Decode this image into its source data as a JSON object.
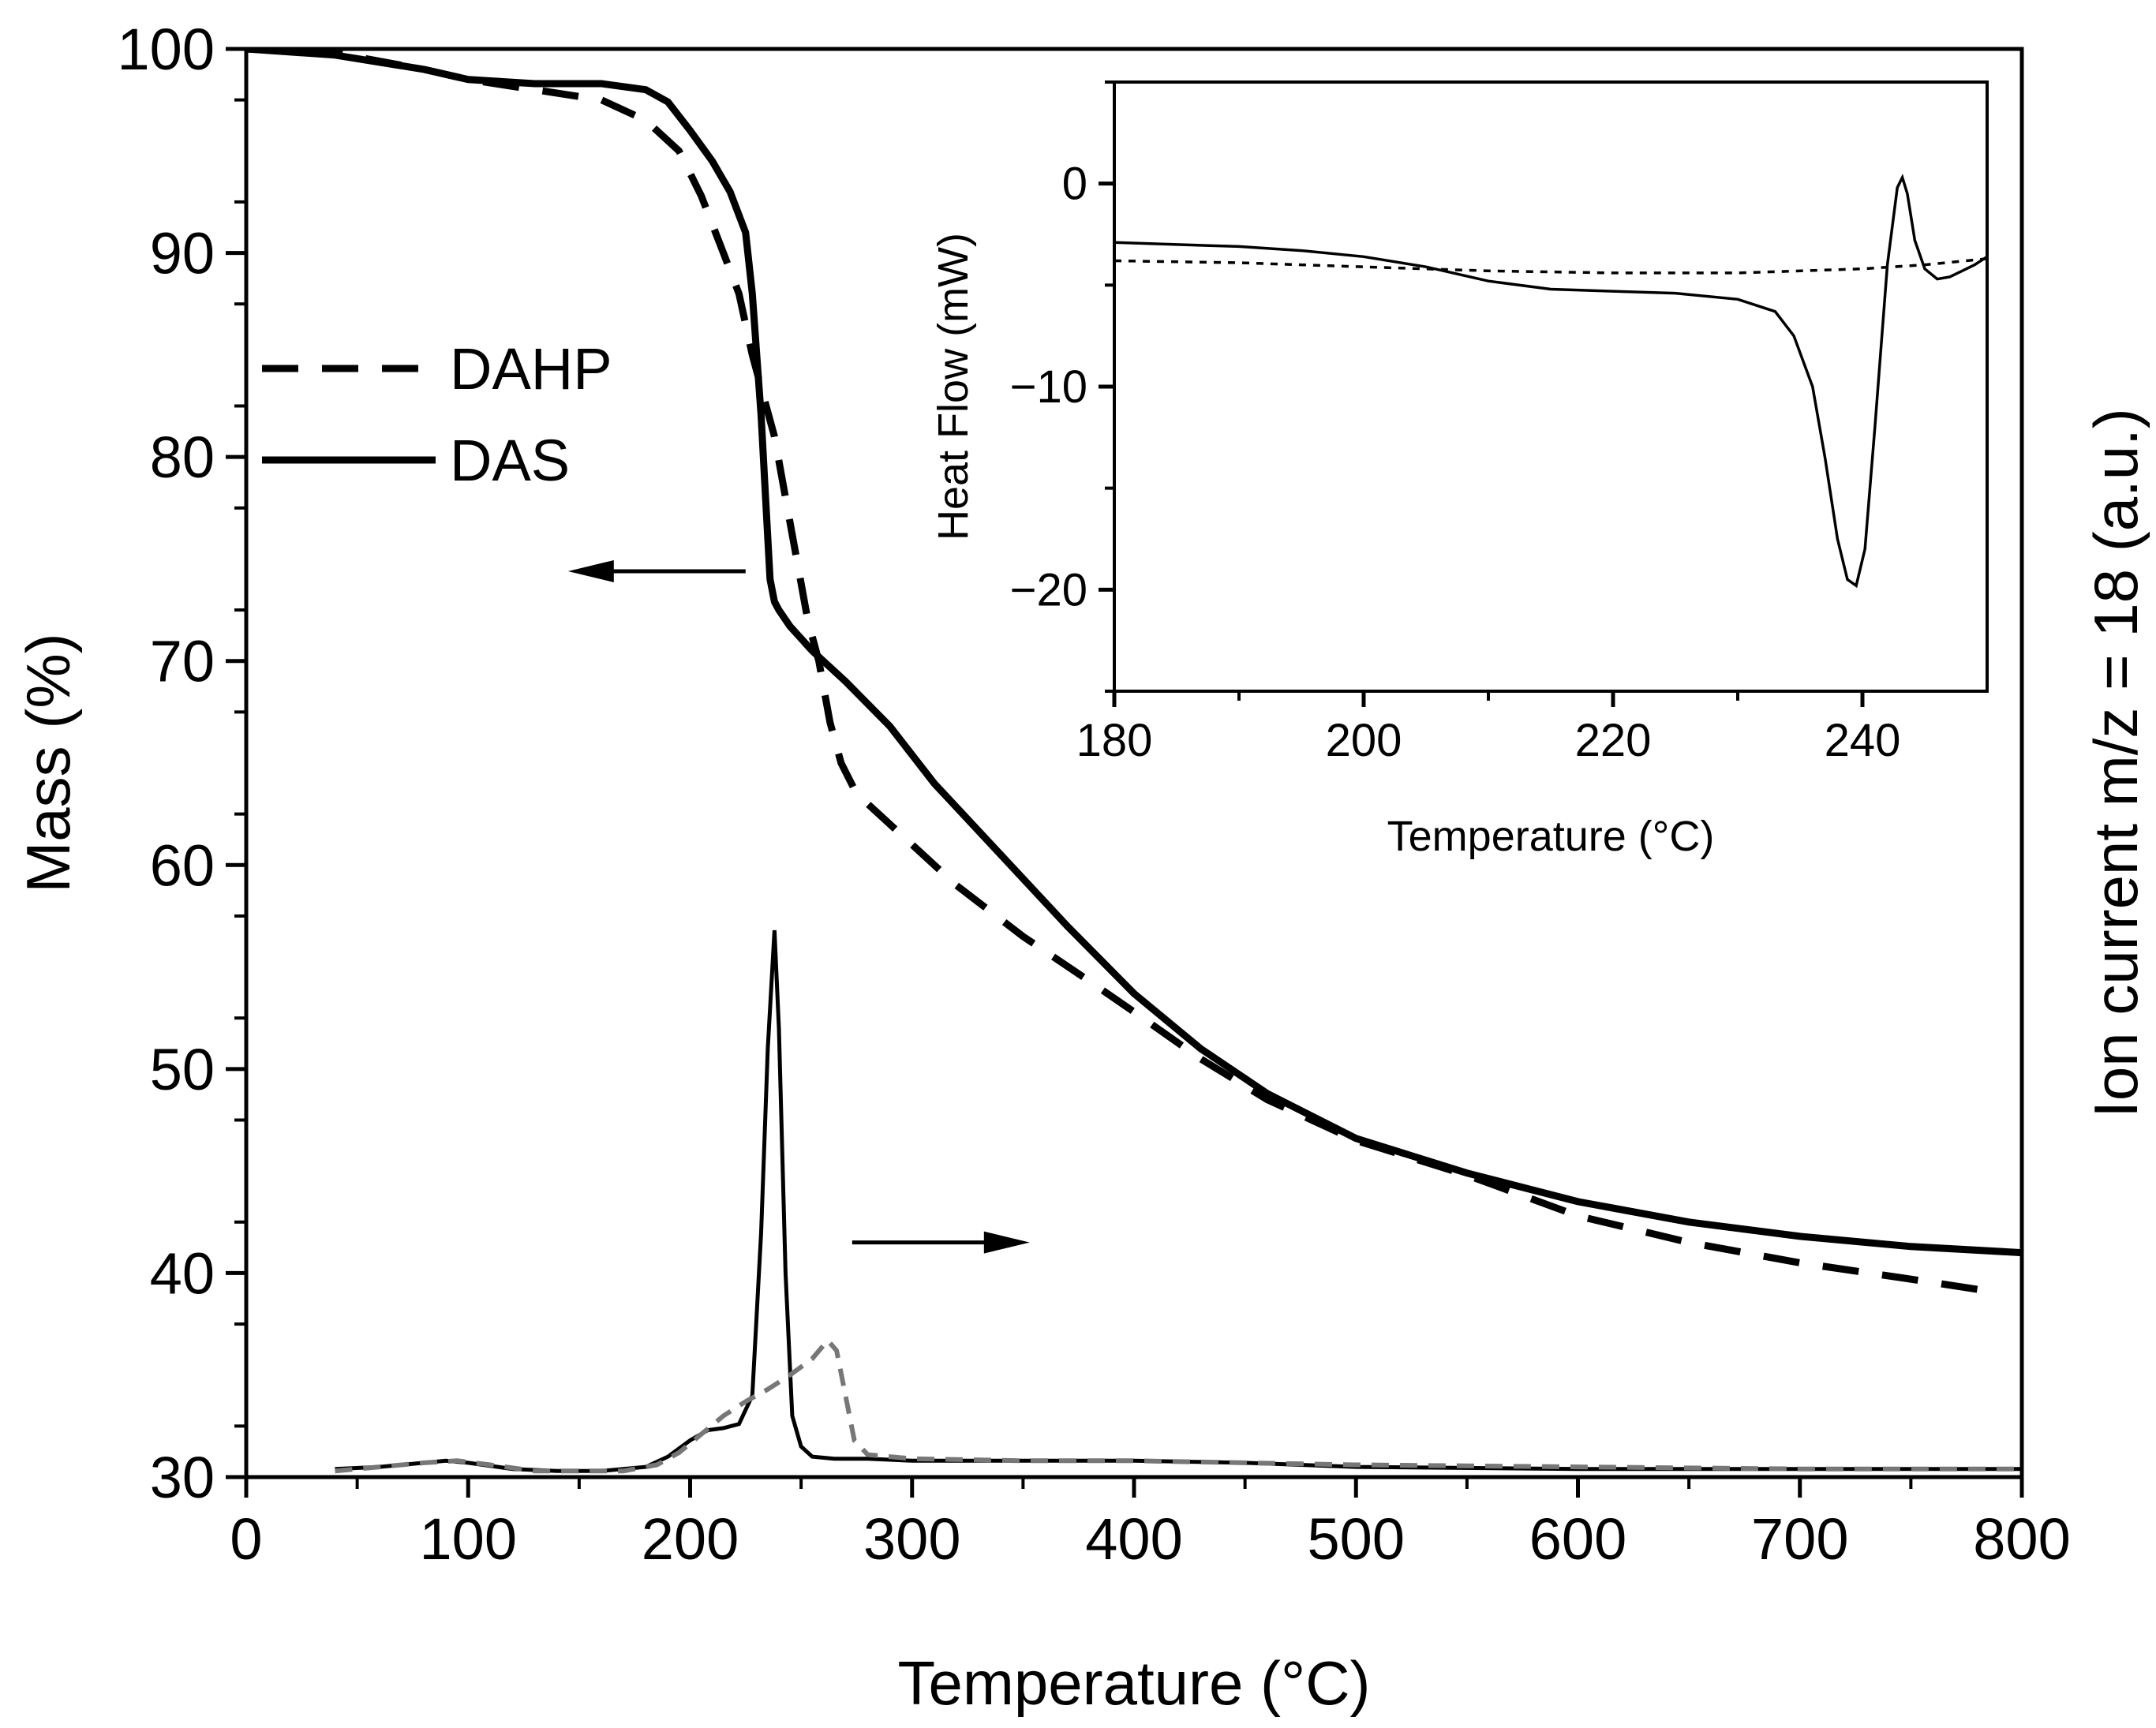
{
  "chart_data": [
    {
      "type": "line",
      "title": "",
      "xlabel": "Temperature (°C)",
      "ylabel": "Mass (%)",
      "y2label": "Ion current m/z = 18 (a.u.)",
      "xlim": [
        0,
        800
      ],
      "ylim": [
        30,
        100
      ],
      "xticks": [
        "0",
        "100",
        "200",
        "300",
        "400",
        "500",
        "600",
        "700",
        "800"
      ],
      "yticks": [
        "30",
        "40",
        "50",
        "60",
        "70",
        "80",
        "90",
        "100"
      ],
      "legend": {
        "position": "upper-left",
        "entries": [
          "DAHP",
          "DAS"
        ]
      },
      "annotations": [
        {
          "type": "arrow",
          "direction": "left",
          "from": [
            225,
            74.4
          ],
          "to": [
            145,
            74.4
          ],
          "meaning": "mass curves read on left axis"
        },
        {
          "type": "arrow",
          "direction": "right",
          "from": [
            273,
            41.5
          ],
          "to": [
            353,
            41.5
          ],
          "meaning": "ion current curves read on right axis"
        }
      ],
      "series": [
        {
          "name": "DAHP",
          "style": "dashed",
          "color": "#000000",
          "axis": "left",
          "x": [
            0,
            40,
            80,
            100,
            130,
            160,
            180,
            195,
            205,
            215,
            222,
            228,
            233,
            238,
            243,
            248,
            253,
            258,
            263,
            268,
            275,
            290,
            320,
            350,
            380,
            400,
            430,
            460,
            500,
            550,
            600,
            650,
            700,
            750,
            780
          ],
          "y": [
            100,
            99.8,
            99,
            98.5,
            98.0,
            97.5,
            96.5,
            95.0,
            92.8,
            90.0,
            88.0,
            85.0,
            83.0,
            81.0,
            78.0,
            75.0,
            72.0,
            70.0,
            67.0,
            65.0,
            63.5,
            62.0,
            59.0,
            56.5,
            54.3,
            52.8,
            50.5,
            48.5,
            46.5,
            44.8,
            42.8,
            41.5,
            40.5,
            39.7,
            39.2
          ]
        },
        {
          "name": "DAS",
          "style": "solid",
          "color": "#000000",
          "axis": "left",
          "x": [
            0,
            40,
            80,
            100,
            130,
            160,
            180,
            190,
            200,
            210,
            218,
            225,
            228,
            230,
            232,
            234,
            236,
            238,
            240,
            245,
            255,
            270,
            290,
            310,
            340,
            370,
            400,
            430,
            460,
            500,
            550,
            600,
            650,
            700,
            750,
            800
          ],
          "y": [
            100,
            99.7,
            99,
            98.5,
            98.3,
            98.3,
            98.0,
            97.4,
            96.0,
            94.5,
            93.0,
            91.0,
            88.0,
            85.0,
            82.0,
            78.0,
            74.0,
            72.9,
            72.5,
            71.7,
            70.5,
            69.0,
            66.8,
            64.0,
            60.5,
            57.0,
            53.7,
            51.0,
            48.8,
            46.6,
            44.9,
            43.5,
            42.5,
            41.8,
            41.3,
            41.0
          ]
        },
        {
          "name": "DAS ion current m/z = 18",
          "style": "solid",
          "color": "#000000",
          "axis": "right",
          "x": [
            40,
            60,
            80,
            90,
            100,
            120,
            140,
            160,
            180,
            190,
            200,
            208,
            215,
            222,
            228,
            232,
            235,
            238,
            240,
            243,
            246,
            250,
            255,
            265,
            280,
            300,
            350,
            400,
            450,
            500,
            600,
            700,
            800
          ],
          "y": [
            30.4,
            30.5,
            30.7,
            30.8,
            30.7,
            30.4,
            30.3,
            30.3,
            30.5,
            31.0,
            31.8,
            32.3,
            32.4,
            32.6,
            34.0,
            42.0,
            51.0,
            56.8,
            52.0,
            40.0,
            33.0,
            31.5,
            31.0,
            30.9,
            30.9,
            30.8,
            30.8,
            30.8,
            30.7,
            30.5,
            30.4,
            30.4,
            30.4
          ]
        },
        {
          "name": "DAHP ion current m/z = 18",
          "style": "dashed",
          "color": "#777777",
          "axis": "right",
          "x": [
            40,
            60,
            80,
            95,
            110,
            130,
            150,
            170,
            185,
            195,
            205,
            215,
            225,
            235,
            245,
            255,
            262,
            266,
            270,
            274,
            280,
            300,
            350,
            400,
            450,
            500,
            600,
            700,
            800
          ],
          "y": [
            30.3,
            30.5,
            30.7,
            30.8,
            30.6,
            30.3,
            30.3,
            30.3,
            30.6,
            31.2,
            32.1,
            33.0,
            33.7,
            34.3,
            35.0,
            35.8,
            36.7,
            36.2,
            34.0,
            31.8,
            31.1,
            30.9,
            30.8,
            30.8,
            30.7,
            30.6,
            30.5,
            30.4,
            30.4
          ]
        }
      ]
    },
    {
      "type": "line",
      "title": "",
      "xlabel": "Temperature (°C)",
      "ylabel": "Heat Flow (mW)",
      "xlim": [
        180,
        250
      ],
      "ylim": [
        -25,
        5
      ],
      "xticks": [
        "180",
        "200",
        "220",
        "240"
      ],
      "yticks": [
        "0",
        "−10",
        "−20"
      ],
      "series": [
        {
          "name": "DAS",
          "style": "solid",
          "color": "#000000",
          "x": [
            180,
            185,
            190,
            195,
            200,
            205,
            210,
            215,
            220,
            225,
            230,
            233,
            234.5,
            236,
            237,
            238,
            238.8,
            239.5,
            240.2,
            241,
            242,
            242.8,
            243.2,
            243.6,
            244.2,
            245,
            246,
            247,
            248,
            249,
            250
          ],
          "y": [
            -2.9,
            -3.0,
            -3.1,
            -3.3,
            -3.6,
            -4.1,
            -4.8,
            -5.2,
            -5.3,
            -5.4,
            -5.7,
            -6.3,
            -7.5,
            -10.0,
            -13.5,
            -17.5,
            -19.5,
            -19.8,
            -18.0,
            -12.0,
            -4.0,
            -0.2,
            0.3,
            -0.5,
            -2.8,
            -4.2,
            -4.7,
            -4.6,
            -4.3,
            -4.0,
            -3.6
          ]
        },
        {
          "name": "DAHP",
          "style": "dotted",
          "color": "#000000",
          "x": [
            180,
            190,
            200,
            210,
            220,
            230,
            240,
            245,
            250
          ],
          "y": [
            -3.8,
            -3.9,
            -4.1,
            -4.3,
            -4.4,
            -4.4,
            -4.2,
            -4.0,
            -3.7
          ]
        }
      ]
    }
  ]
}
